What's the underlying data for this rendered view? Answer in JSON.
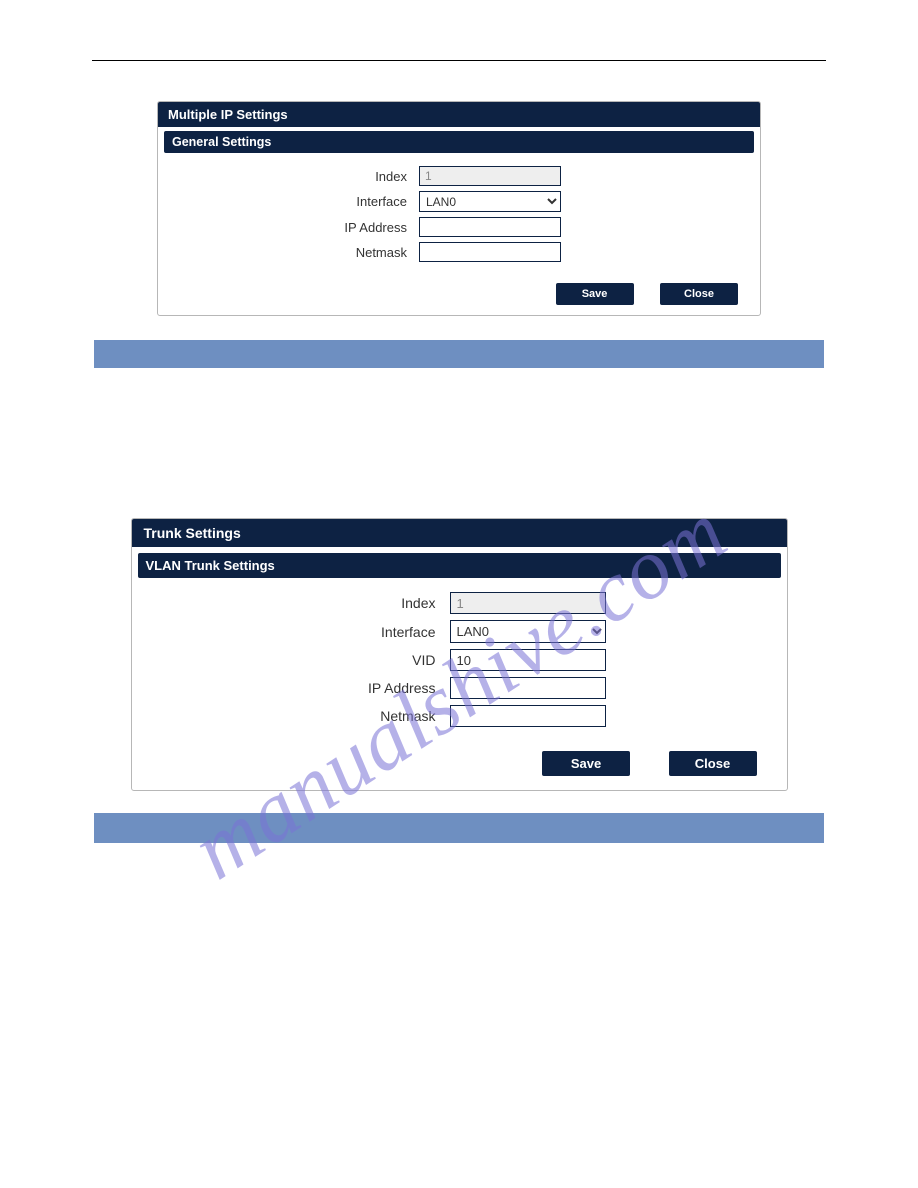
{
  "colors": {
    "panel_header_bg": "#0d2243",
    "panel_header_text": "#ffffff",
    "panel_border": "#b7b7b7",
    "input_border": "#0d2243",
    "input_disabled_bg": "#eeeeee",
    "button_bg": "#0d2243",
    "button_text": "#ffffff",
    "bar_bg": "#6e8fc1",
    "watermark_color": "#7a72d6",
    "label_text": "#333333",
    "page_bg": "#ffffff"
  },
  "watermark": {
    "text": "manualshive.com",
    "rotation_deg": -33,
    "font_family": "Georgia",
    "font_style": "italic",
    "opacity": 0.55
  },
  "panels": {
    "multiple_ip": {
      "title": "Multiple IP Settings",
      "section_title": "General Settings",
      "fields": {
        "index": {
          "label": "Index",
          "value": "1",
          "type": "text",
          "disabled": true
        },
        "interface": {
          "label": "Interface",
          "value": "LAN0",
          "type": "select",
          "options": [
            "LAN0"
          ]
        },
        "ip_address": {
          "label": "IP Address",
          "value": "",
          "type": "text"
        },
        "netmask": {
          "label": "Netmask",
          "value": "",
          "type": "text"
        }
      },
      "buttons": {
        "save": "Save",
        "close": "Close"
      }
    },
    "trunk": {
      "title": "Trunk Settings",
      "section_title": "VLAN Trunk Settings",
      "fields": {
        "index": {
          "label": "Index",
          "value": "1",
          "type": "text",
          "disabled": true
        },
        "interface": {
          "label": "Interface",
          "value": "LAN0",
          "type": "select",
          "options": [
            "LAN0"
          ]
        },
        "vid": {
          "label": "VID",
          "value": "10",
          "type": "text"
        },
        "ip_address": {
          "label": "IP Address",
          "value": "",
          "type": "text"
        },
        "netmask": {
          "label": "Netmask",
          "value": "",
          "type": "text"
        }
      },
      "buttons": {
        "save": "Save",
        "close": "Close"
      }
    }
  }
}
